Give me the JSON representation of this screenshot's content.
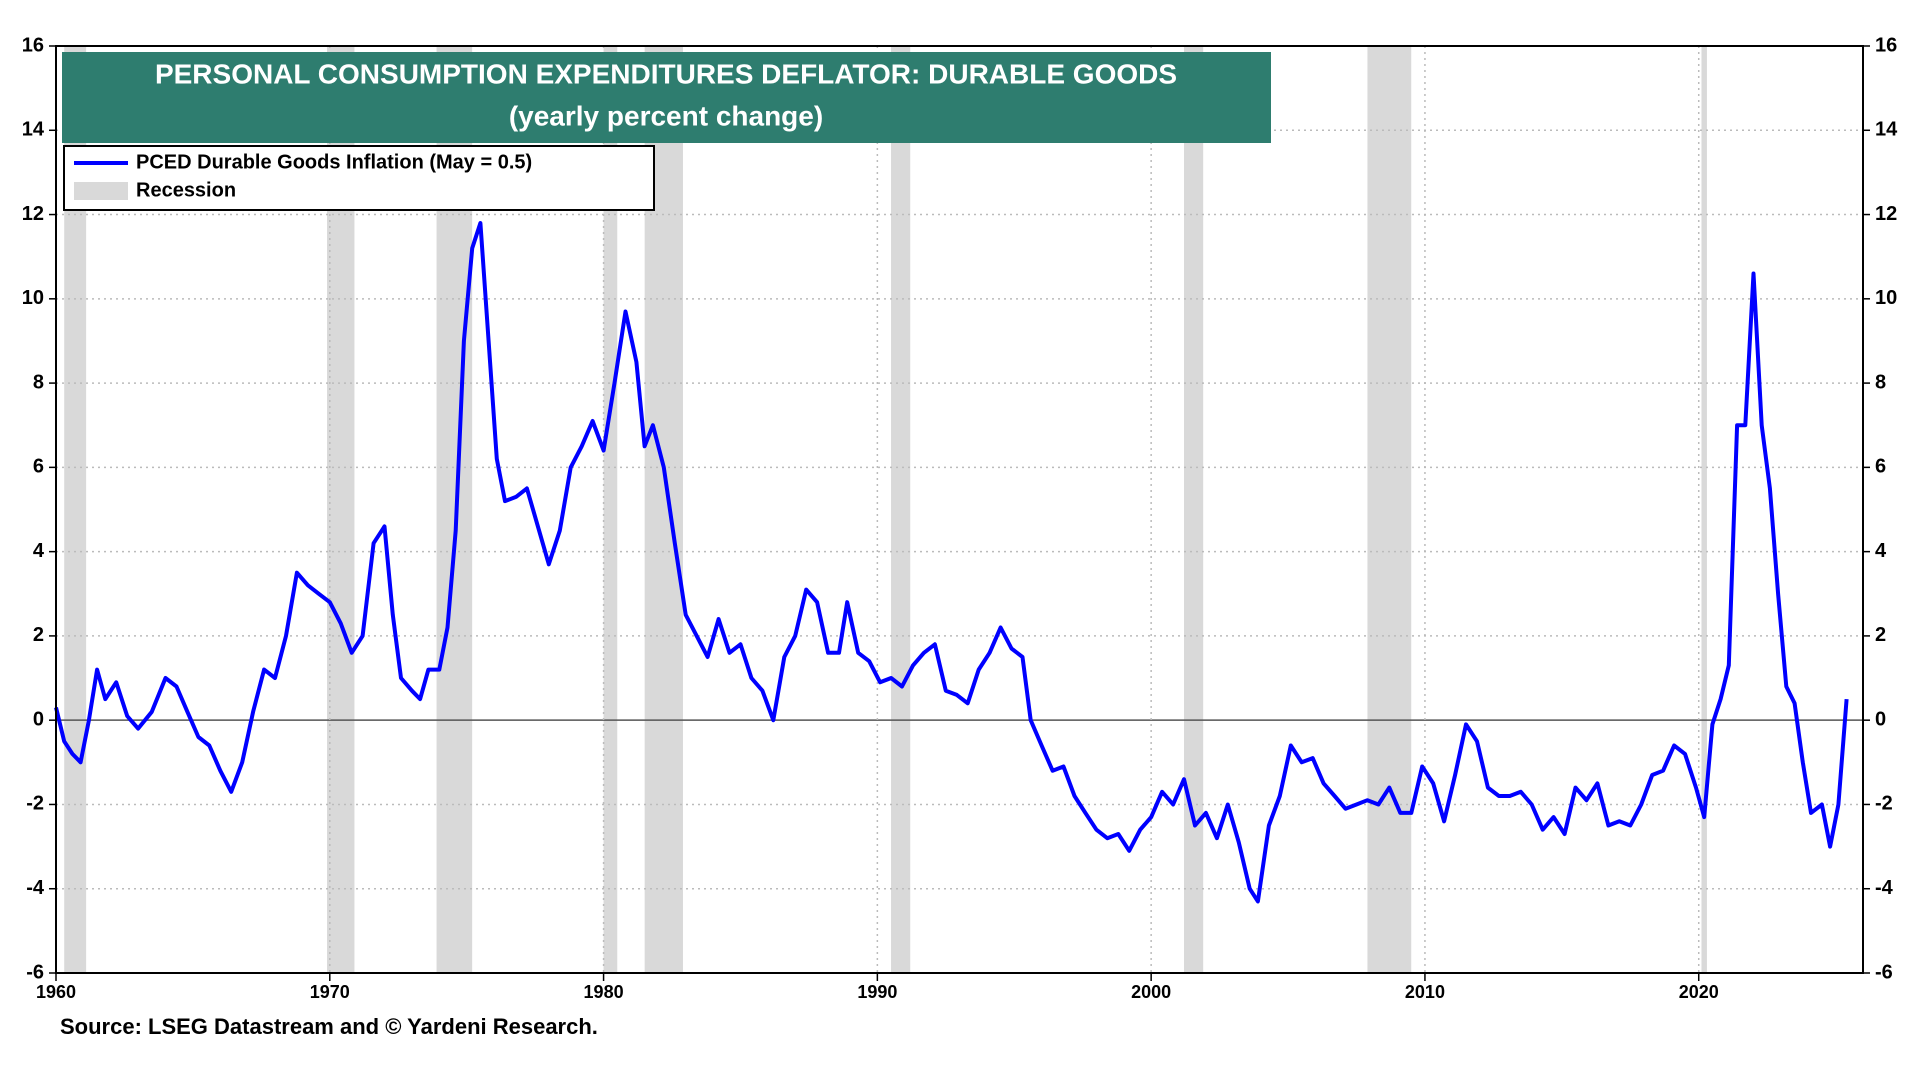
{
  "chart_data": {
    "type": "line",
    "title": "PERSONAL CONSUMPTION EXPENDITURES DEFLATOR: DURABLE GOODS",
    "subtitle": "(yearly percent change)",
    "source": "Source: LSEG Datastream and © Yardeni Research.",
    "x": [
      1960.0,
      1960.3,
      1960.6,
      1960.9,
      1961.2,
      1961.5,
      1961.8,
      1962.2,
      1962.6,
      1963.0,
      1963.5,
      1964.0,
      1964.4,
      1964.8,
      1965.2,
      1965.6,
      1966.0,
      1966.4,
      1966.8,
      1967.2,
      1967.6,
      1968.0,
      1968.4,
      1968.8,
      1969.2,
      1969.6,
      1970.0,
      1970.4,
      1970.8,
      1971.2,
      1971.6,
      1972.0,
      1972.3,
      1972.6,
      1973.0,
      1973.3,
      1973.6,
      1974.0,
      1974.3,
      1974.6,
      1974.9,
      1975.2,
      1975.5,
      1975.8,
      1976.1,
      1976.4,
      1976.8,
      1977.2,
      1977.6,
      1978.0,
      1978.4,
      1978.8,
      1979.2,
      1979.6,
      1980.0,
      1980.4,
      1980.8,
      1981.2,
      1981.5,
      1981.8,
      1982.2,
      1982.6,
      1983.0,
      1983.4,
      1983.8,
      1984.2,
      1984.6,
      1985.0,
      1985.4,
      1985.8,
      1986.2,
      1986.6,
      1987.0,
      1987.4,
      1987.8,
      1988.2,
      1988.6,
      1988.9,
      1989.3,
      1989.7,
      1990.1,
      1990.5,
      1990.9,
      1991.3,
      1991.7,
      1992.1,
      1992.5,
      1992.9,
      1993.3,
      1993.7,
      1994.1,
      1994.5,
      1994.9,
      1995.3,
      1995.6,
      1996.0,
      1996.4,
      1996.8,
      1997.2,
      1997.6,
      1998.0,
      1998.4,
      1998.8,
      1999.2,
      1999.6,
      2000.0,
      2000.4,
      2000.8,
      2001.2,
      2001.6,
      2002.0,
      2002.4,
      2002.8,
      2003.2,
      2003.6,
      2003.9,
      2004.3,
      2004.7,
      2005.1,
      2005.5,
      2005.9,
      2006.3,
      2006.7,
      2007.1,
      2007.5,
      2007.9,
      2008.3,
      2008.7,
      2009.1,
      2009.5,
      2009.9,
      2010.3,
      2010.7,
      2011.1,
      2011.5,
      2011.9,
      2012.3,
      2012.7,
      2013.1,
      2013.5,
      2013.9,
      2014.3,
      2014.7,
      2015.1,
      2015.5,
      2015.9,
      2016.3,
      2016.7,
      2017.1,
      2017.5,
      2017.9,
      2018.3,
      2018.7,
      2019.1,
      2019.5,
      2019.9,
      2020.2,
      2020.5,
      2020.8,
      2021.1,
      2021.4,
      2021.7,
      2022.0,
      2022.3,
      2022.6,
      2022.9,
      2023.2,
      2023.5,
      2023.8,
      2024.1,
      2024.5,
      2024.8,
      2025.1,
      2025.4
    ],
    "series": [
      {
        "name": "PCED Durable Goods Inflation (May = 0.5)",
        "color": "#0000ff",
        "values": [
          0.3,
          -0.5,
          -0.8,
          -1.0,
          0,
          1.2,
          0.5,
          0.9,
          0.1,
          -0.2,
          0.2,
          1.0,
          0.8,
          0.2,
          -0.4,
          -0.6,
          -1.2,
          -1.7,
          -1.0,
          0.2,
          1.2,
          1.0,
          2.0,
          3.5,
          3.2,
          3.0,
          2.8,
          2.3,
          1.6,
          2.0,
          4.2,
          4.6,
          2.5,
          1.0,
          0.7,
          0.5,
          1.2,
          1.2,
          2.2,
          4.5,
          9.0,
          11.2,
          11.8,
          9.0,
          6.2,
          5.2,
          5.3,
          5.5,
          4.6,
          3.7,
          4.5,
          6.0,
          6.5,
          7.1,
          6.4,
          8.0,
          9.7,
          8.5,
          6.5,
          7.0,
          6.0,
          4.2,
          2.5,
          2.0,
          1.5,
          2.4,
          1.6,
          1.8,
          1.0,
          0.7,
          0.0,
          1.5,
          2.0,
          3.1,
          2.8,
          1.6,
          1.6,
          2.8,
          1.6,
          1.4,
          0.9,
          1.0,
          0.8,
          1.3,
          1.6,
          1.8,
          0.7,
          0.6,
          0.4,
          1.2,
          1.6,
          2.2,
          1.7,
          1.5,
          0.0,
          -0.6,
          -1.2,
          -1.1,
          -1.8,
          -2.2,
          -2.6,
          -2.8,
          -2.7,
          -3.1,
          -2.6,
          -2.3,
          -1.7,
          -2.0,
          -1.4,
          -2.5,
          -2.2,
          -2.8,
          -2.0,
          -2.9,
          -4.0,
          -4.3,
          -2.5,
          -1.8,
          -0.6,
          -1.0,
          -0.9,
          -1.5,
          -1.8,
          -2.1,
          -2.0,
          -1.9,
          -2.0,
          -1.6,
          -2.2,
          -2.2,
          -1.1,
          -1.5,
          -2.4,
          -1.3,
          -0.1,
          -0.5,
          -1.6,
          -1.8,
          -1.8,
          -1.7,
          -2.0,
          -2.6,
          -2.3,
          -2.7,
          -1.6,
          -1.9,
          -1.5,
          -2.5,
          -2.4,
          -2.5,
          -2.0,
          -1.3,
          -1.2,
          -0.6,
          -0.8,
          -1.6,
          -2.3,
          -0.1,
          0.5,
          1.3,
          7.0,
          7.0,
          10.6,
          7.0,
          5.5,
          3.0,
          0.8,
          0.4,
          -1.0,
          -2.2,
          -2.0,
          -3.0,
          -2.0,
          0.5
        ]
      }
    ],
    "recessions": {
      "name": "Recession",
      "color": "#d9d9d9",
      "ranges": [
        [
          1960.3,
          1961.1
        ],
        [
          1969.9,
          1970.9
        ],
        [
          1973.9,
          1975.2
        ],
        [
          1980.0,
          1980.5
        ],
        [
          1981.5,
          1982.9
        ],
        [
          1990.5,
          1991.2
        ],
        [
          2001.2,
          2001.9
        ],
        [
          2007.9,
          2009.5
        ],
        [
          2020.1,
          2020.3
        ]
      ]
    },
    "xlim": [
      1960,
      2026
    ],
    "xticks": [
      1960,
      1970,
      1980,
      1990,
      2000,
      2010,
      2020
    ],
    "ylim": [
      -6,
      16
    ],
    "yticks": [
      -6,
      -4,
      -2,
      0,
      2,
      4,
      6,
      8,
      10,
      12,
      14,
      16
    ],
    "y2lim": [
      -6,
      16
    ],
    "y2ticks": [
      -6,
      -4,
      -2,
      0,
      2,
      4,
      6,
      8,
      10,
      12,
      14,
      16
    ],
    "grid": true
  }
}
